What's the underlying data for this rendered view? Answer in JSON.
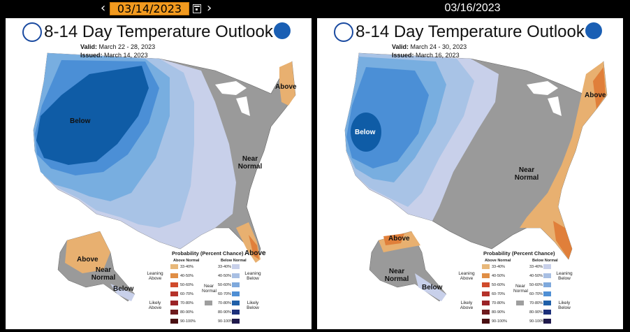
{
  "nav": {
    "prev_icon": "chevron-left-icon",
    "next_icon": "chevron-right-icon",
    "calendar_icon": "calendar-icon",
    "date_value": "03/14/2023",
    "compare_date": "03/16/2023"
  },
  "panels": [
    {
      "title": "8-14 Day Temperature Outlook",
      "valid_label": "Valid:",
      "valid_value": "March 22 - 28, 2023",
      "issued_label": "Issued:",
      "issued_value": "March 14, 2023",
      "regions": [
        "Below",
        "Above",
        "Near Normal",
        "Above",
        "Above",
        "Near Normal",
        "Below"
      ]
    },
    {
      "title": "8-14 Day Temperature Outlook",
      "valid_label": "Valid:",
      "valid_value": "March 24 - 30, 2023",
      "issued_label": "Issued:",
      "issued_value": "March 16, 2023",
      "regions": [
        "Below",
        "Above",
        "Near Normal",
        "Above",
        "Near Normal",
        "Below"
      ]
    }
  ],
  "legend": {
    "title": "Probability (Percent Chance)",
    "above_header": "Above Normal",
    "below_header": "Below Normal",
    "near_header": "Near Normal",
    "leaning_above": "Leaning Above",
    "likely_above": "Likely Above",
    "leaning_below": "Leaning Below",
    "likely_below": "Likely Below",
    "bins": [
      "33-40%",
      "40-50%",
      "50-60%",
      "60-70%",
      "70-80%",
      "80-90%",
      "90-100%"
    ],
    "above_colors": [
      "#e8b87a",
      "#e08e45",
      "#d04b2c",
      "#b5322a",
      "#9b2226",
      "#6e1a1d",
      "#4a0f12"
    ],
    "below_colors": [
      "#c8d0ea",
      "#a8bfe3",
      "#7fa9dc",
      "#4f8fd4",
      "#1f5fa8",
      "#1c2f7a",
      "#201a4d"
    ],
    "near_color": "#9e9e9e"
  },
  "colors": {
    "below_light": "#c8d0ea",
    "below_2": "#a8c3e6",
    "below_3": "#78aee0",
    "below_4": "#4b8fd6",
    "below_5": "#0f5ca6",
    "near": "#9a9a9a",
    "above_1": "#e8b070",
    "above_2": "#e07f3a"
  }
}
